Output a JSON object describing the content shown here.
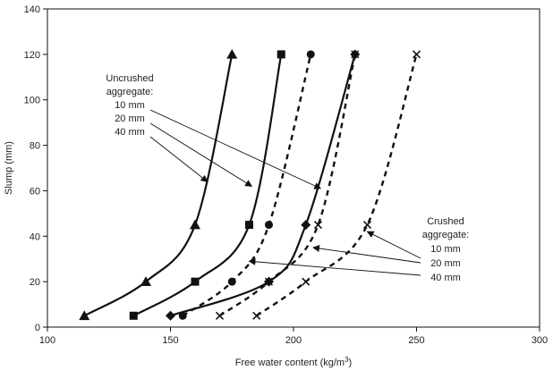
{
  "chart_data": {
    "type": "line",
    "xlabel": "Free water content (kg/m",
    "xlabel_sup": "3",
    "xlabel_end": ")",
    "ylabel": "Slump (mm)",
    "xlim": [
      100,
      300
    ],
    "ylim": [
      0,
      140
    ],
    "xticks": [
      100,
      150,
      200,
      250,
      300
    ],
    "yticks": [
      0,
      20,
      40,
      60,
      80,
      100,
      120,
      140
    ],
    "grid": false,
    "series": [
      {
        "group": "uncrushed",
        "style": "solid",
        "marker": "triangle",
        "color": "#111111",
        "x": [
          115,
          140,
          160,
          175
        ],
        "y": [
          5,
          20,
          45,
          120
        ]
      },
      {
        "group": "uncrushed",
        "style": "solid",
        "marker": "square",
        "color": "#111111",
        "x": [
          135,
          160,
          182,
          195
        ],
        "y": [
          5,
          20,
          45,
          120
        ]
      },
      {
        "group": "uncrushed",
        "style": "solid",
        "marker": "diamond",
        "color": "#111111",
        "x": [
          150,
          190,
          205,
          225
        ],
        "y": [
          5,
          20,
          45,
          120
        ]
      },
      {
        "group": "crushed",
        "style": "dashed",
        "marker": "circle",
        "color": "#111111",
        "x": [
          155,
          175,
          190,
          207
        ],
        "y": [
          5,
          20,
          45,
          120
        ]
      },
      {
        "group": "crushed",
        "style": "dashed",
        "marker": "x",
        "color": "#111111",
        "x": [
          170,
          190,
          210,
          225
        ],
        "y": [
          5,
          20,
          45,
          120
        ]
      },
      {
        "group": "crushed",
        "style": "dashed",
        "marker": "x",
        "color": "#111111",
        "x": [
          185,
          205,
          230,
          250
        ],
        "y": [
          5,
          20,
          45,
          120
        ]
      }
    ],
    "annotations": {
      "uncrushed": {
        "lines": [
          "Uncrushed",
          "aggregate:"
        ],
        "items": [
          "10 mm",
          "20 mm",
          "40 mm"
        ]
      },
      "crushed": {
        "lines": [
          "Crushed",
          "aggregate:"
        ],
        "items": [
          "10 mm",
          "20 mm",
          "40 mm"
        ]
      }
    }
  }
}
